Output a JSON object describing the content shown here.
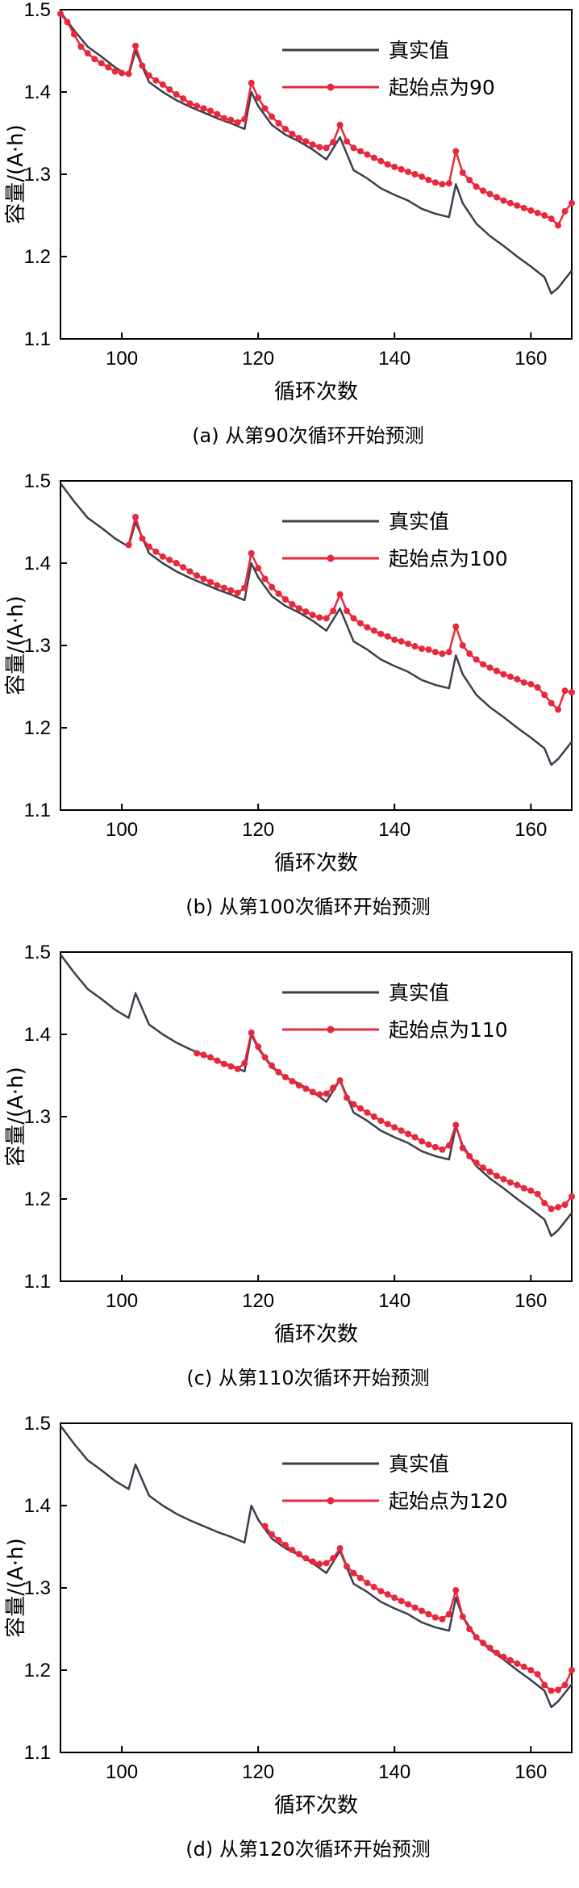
{
  "colors": {
    "true_line": "#3a3f4b",
    "pred": "#e8283c"
  },
  "chart_data": [
    {
      "type": "line",
      "xlabel": "循环次数",
      "ylabel": "容量/(A·h)",
      "caption": "(a) 从第90次循环开始预测",
      "xlim": [
        91,
        166
      ],
      "ylim": [
        1.1,
        1.5
      ],
      "xticks": [
        100,
        120,
        140,
        160
      ],
      "yticks": [
        1.1,
        1.2,
        1.3,
        1.4,
        1.5
      ],
      "series": [
        {
          "name": "真实值",
          "x": [
            91,
            93,
            95,
            97,
            99,
            101,
            102,
            104,
            106,
            108,
            110,
            112,
            114,
            116,
            118,
            119,
            120,
            122,
            124,
            126,
            128,
            130,
            132,
            134,
            136,
            138,
            140,
            142,
            144,
            146,
            148,
            149,
            150,
            152,
            154,
            156,
            158,
            160,
            162,
            163,
            164,
            166
          ],
          "y": [
            1.497,
            1.475,
            1.455,
            1.443,
            1.43,
            1.42,
            1.45,
            1.412,
            1.4,
            1.39,
            1.382,
            1.375,
            1.368,
            1.362,
            1.355,
            1.4,
            1.383,
            1.36,
            1.348,
            1.34,
            1.33,
            1.318,
            1.345,
            1.305,
            1.295,
            1.283,
            1.275,
            1.268,
            1.258,
            1.252,
            1.248,
            1.288,
            1.265,
            1.24,
            1.225,
            1.213,
            1.2,
            1.188,
            1.175,
            1.155,
            1.162,
            1.183
          ]
        },
        {
          "name": "起始点为90",
          "x": [
            91,
            92,
            93,
            94,
            95,
            96,
            97,
            98,
            99,
            100,
            101,
            102,
            103,
            104,
            105,
            106,
            107,
            108,
            109,
            110,
            111,
            112,
            113,
            114,
            115,
            116,
            117,
            118,
            119,
            120,
            121,
            122,
            123,
            124,
            125,
            126,
            127,
            128,
            129,
            130,
            131,
            132,
            133,
            134,
            135,
            136,
            137,
            138,
            139,
            140,
            141,
            142,
            143,
            144,
            145,
            146,
            147,
            148,
            149,
            150,
            151,
            152,
            153,
            154,
            155,
            156,
            157,
            158,
            159,
            160,
            161,
            162,
            163,
            164,
            165,
            166
          ],
          "y": [
            1.495,
            1.485,
            1.47,
            1.455,
            1.447,
            1.44,
            1.435,
            1.43,
            1.425,
            1.423,
            1.422,
            1.456,
            1.432,
            1.42,
            1.414,
            1.409,
            1.403,
            1.397,
            1.392,
            1.386,
            1.383,
            1.38,
            1.377,
            1.373,
            1.368,
            1.366,
            1.363,
            1.367,
            1.411,
            1.393,
            1.38,
            1.37,
            1.362,
            1.355,
            1.349,
            1.344,
            1.34,
            1.336,
            1.333,
            1.332,
            1.339,
            1.36,
            1.34,
            1.332,
            1.328,
            1.324,
            1.32,
            1.316,
            1.312,
            1.309,
            1.306,
            1.303,
            1.3,
            1.297,
            1.293,
            1.29,
            1.288,
            1.289,
            1.328,
            1.302,
            1.293,
            1.285,
            1.28,
            1.276,
            1.272,
            1.268,
            1.265,
            1.262,
            1.259,
            1.256,
            1.253,
            1.25,
            1.246,
            1.238,
            1.255,
            1.265
          ]
        }
      ]
    },
    {
      "type": "line",
      "xlabel": "循环次数",
      "ylabel": "容量/(A·h)",
      "caption": "(b) 从第100次循环开始预测",
      "xlim": [
        91,
        166
      ],
      "ylim": [
        1.1,
        1.5
      ],
      "xticks": [
        100,
        120,
        140,
        160
      ],
      "yticks": [
        1.1,
        1.2,
        1.3,
        1.4,
        1.5
      ],
      "series": [
        {
          "name": "真实值",
          "x": [
            91,
            93,
            95,
            97,
            99,
            101,
            102,
            104,
            106,
            108,
            110,
            112,
            114,
            116,
            118,
            119,
            120,
            122,
            124,
            126,
            128,
            130,
            132,
            134,
            136,
            138,
            140,
            142,
            144,
            146,
            148,
            149,
            150,
            152,
            154,
            156,
            158,
            160,
            162,
            163,
            164,
            166
          ],
          "y": [
            1.497,
            1.475,
            1.455,
            1.443,
            1.43,
            1.42,
            1.45,
            1.412,
            1.4,
            1.39,
            1.382,
            1.375,
            1.368,
            1.362,
            1.355,
            1.4,
            1.383,
            1.36,
            1.348,
            1.34,
            1.33,
            1.318,
            1.345,
            1.305,
            1.295,
            1.283,
            1.275,
            1.268,
            1.258,
            1.252,
            1.248,
            1.288,
            1.265,
            1.24,
            1.225,
            1.213,
            1.2,
            1.188,
            1.175,
            1.155,
            1.162,
            1.183
          ]
        },
        {
          "name": "起始点为100",
          "x": [
            101,
            102,
            103,
            104,
            105,
            106,
            107,
            108,
            109,
            110,
            111,
            112,
            113,
            114,
            115,
            116,
            117,
            118,
            119,
            120,
            121,
            122,
            123,
            124,
            125,
            126,
            127,
            128,
            129,
            130,
            131,
            132,
            133,
            134,
            135,
            136,
            137,
            138,
            139,
            140,
            141,
            142,
            143,
            144,
            145,
            146,
            147,
            148,
            149,
            150,
            151,
            152,
            153,
            154,
            155,
            156,
            157,
            158,
            159,
            160,
            161,
            162,
            163,
            164,
            165,
            166
          ],
          "y": [
            1.422,
            1.456,
            1.43,
            1.42,
            1.414,
            1.408,
            1.404,
            1.4,
            1.395,
            1.39,
            1.385,
            1.381,
            1.377,
            1.373,
            1.37,
            1.367,
            1.364,
            1.37,
            1.412,
            1.394,
            1.381,
            1.371,
            1.363,
            1.356,
            1.35,
            1.345,
            1.341,
            1.337,
            1.334,
            1.333,
            1.342,
            1.362,
            1.342,
            1.333,
            1.327,
            1.322,
            1.318,
            1.314,
            1.311,
            1.307,
            1.305,
            1.302,
            1.299,
            1.296,
            1.295,
            1.292,
            1.29,
            1.292,
            1.323,
            1.3,
            1.29,
            1.283,
            1.277,
            1.273,
            1.269,
            1.265,
            1.262,
            1.259,
            1.255,
            1.253,
            1.249,
            1.24,
            1.23,
            1.222,
            1.245,
            1.243
          ]
        }
      ]
    },
    {
      "type": "line",
      "xlabel": "循环次数",
      "ylabel": "容量/(A·h)",
      "caption": "(c) 从第110次循环开始预测",
      "xlim": [
        91,
        166
      ],
      "ylim": [
        1.1,
        1.5
      ],
      "xticks": [
        100,
        120,
        140,
        160
      ],
      "yticks": [
        1.1,
        1.2,
        1.3,
        1.4,
        1.5
      ],
      "series": [
        {
          "name": "真实值",
          "x": [
            91,
            93,
            95,
            97,
            99,
            101,
            102,
            104,
            106,
            108,
            110,
            112,
            114,
            116,
            118,
            119,
            120,
            122,
            124,
            126,
            128,
            130,
            132,
            134,
            136,
            138,
            140,
            142,
            144,
            146,
            148,
            149,
            150,
            152,
            154,
            156,
            158,
            160,
            162,
            163,
            164,
            166
          ],
          "y": [
            1.497,
            1.475,
            1.455,
            1.443,
            1.43,
            1.42,
            1.45,
            1.412,
            1.4,
            1.39,
            1.382,
            1.375,
            1.368,
            1.362,
            1.355,
            1.4,
            1.383,
            1.36,
            1.348,
            1.34,
            1.33,
            1.318,
            1.345,
            1.305,
            1.295,
            1.283,
            1.275,
            1.268,
            1.258,
            1.252,
            1.248,
            1.288,
            1.265,
            1.24,
            1.225,
            1.213,
            1.2,
            1.188,
            1.175,
            1.155,
            1.162,
            1.183
          ]
        },
        {
          "name": "起始点为110",
          "x": [
            111,
            112,
            113,
            114,
            115,
            116,
            117,
            118,
            119,
            120,
            121,
            122,
            123,
            124,
            125,
            126,
            127,
            128,
            129,
            130,
            131,
            132,
            133,
            134,
            135,
            136,
            137,
            138,
            139,
            140,
            141,
            142,
            143,
            144,
            145,
            146,
            147,
            148,
            149,
            150,
            151,
            152,
            153,
            154,
            155,
            156,
            157,
            158,
            159,
            160,
            161,
            162,
            163,
            164,
            165,
            166
          ],
          "y": [
            1.377,
            1.375,
            1.372,
            1.368,
            1.364,
            1.361,
            1.358,
            1.365,
            1.402,
            1.385,
            1.372,
            1.362,
            1.354,
            1.348,
            1.343,
            1.338,
            1.334,
            1.33,
            1.327,
            1.328,
            1.335,
            1.344,
            1.323,
            1.315,
            1.31,
            1.305,
            1.3,
            1.295,
            1.291,
            1.287,
            1.283,
            1.279,
            1.275,
            1.27,
            1.266,
            1.263,
            1.26,
            1.265,
            1.29,
            1.262,
            1.252,
            1.244,
            1.238,
            1.233,
            1.228,
            1.224,
            1.22,
            1.217,
            1.213,
            1.21,
            1.206,
            1.195,
            1.188,
            1.19,
            1.193,
            1.203
          ]
        }
      ]
    },
    {
      "type": "line",
      "xlabel": "循环次数",
      "ylabel": "容量/(A·h)",
      "caption": "(d) 从第120次循环开始预测",
      "xlim": [
        91,
        166
      ],
      "ylim": [
        1.1,
        1.5
      ],
      "xticks": [
        100,
        120,
        140,
        160
      ],
      "yticks": [
        1.1,
        1.2,
        1.3,
        1.4,
        1.5
      ],
      "series": [
        {
          "name": "真实值",
          "x": [
            91,
            93,
            95,
            97,
            99,
            101,
            102,
            104,
            106,
            108,
            110,
            112,
            114,
            116,
            118,
            119,
            120,
            122,
            124,
            126,
            128,
            130,
            132,
            134,
            136,
            138,
            140,
            142,
            144,
            146,
            148,
            149,
            150,
            152,
            154,
            156,
            158,
            160,
            162,
            163,
            164,
            166
          ],
          "y": [
            1.497,
            1.475,
            1.455,
            1.443,
            1.43,
            1.42,
            1.45,
            1.412,
            1.4,
            1.39,
            1.382,
            1.375,
            1.368,
            1.362,
            1.355,
            1.4,
            1.383,
            1.36,
            1.348,
            1.34,
            1.33,
            1.318,
            1.345,
            1.305,
            1.295,
            1.283,
            1.275,
            1.268,
            1.258,
            1.252,
            1.248,
            1.288,
            1.265,
            1.24,
            1.225,
            1.213,
            1.2,
            1.188,
            1.175,
            1.155,
            1.162,
            1.183
          ]
        },
        {
          "name": "起始点为120",
          "x": [
            121,
            122,
            123,
            124,
            125,
            126,
            127,
            128,
            129,
            130,
            131,
            132,
            133,
            134,
            135,
            136,
            137,
            138,
            139,
            140,
            141,
            142,
            143,
            144,
            145,
            146,
            147,
            148,
            149,
            150,
            151,
            152,
            153,
            154,
            155,
            156,
            157,
            158,
            159,
            160,
            161,
            162,
            163,
            164,
            165,
            166
          ],
          "y": [
            1.375,
            1.365,
            1.358,
            1.352,
            1.346,
            1.341,
            1.336,
            1.332,
            1.329,
            1.33,
            1.336,
            1.348,
            1.326,
            1.318,
            1.312,
            1.306,
            1.301,
            1.296,
            1.292,
            1.288,
            1.284,
            1.28,
            1.276,
            1.272,
            1.268,
            1.264,
            1.262,
            1.268,
            1.297,
            1.265,
            1.25,
            1.24,
            1.233,
            1.227,
            1.221,
            1.216,
            1.212,
            1.208,
            1.204,
            1.2,
            1.195,
            1.182,
            1.175,
            1.176,
            1.182,
            1.2
          ]
        }
      ]
    }
  ]
}
